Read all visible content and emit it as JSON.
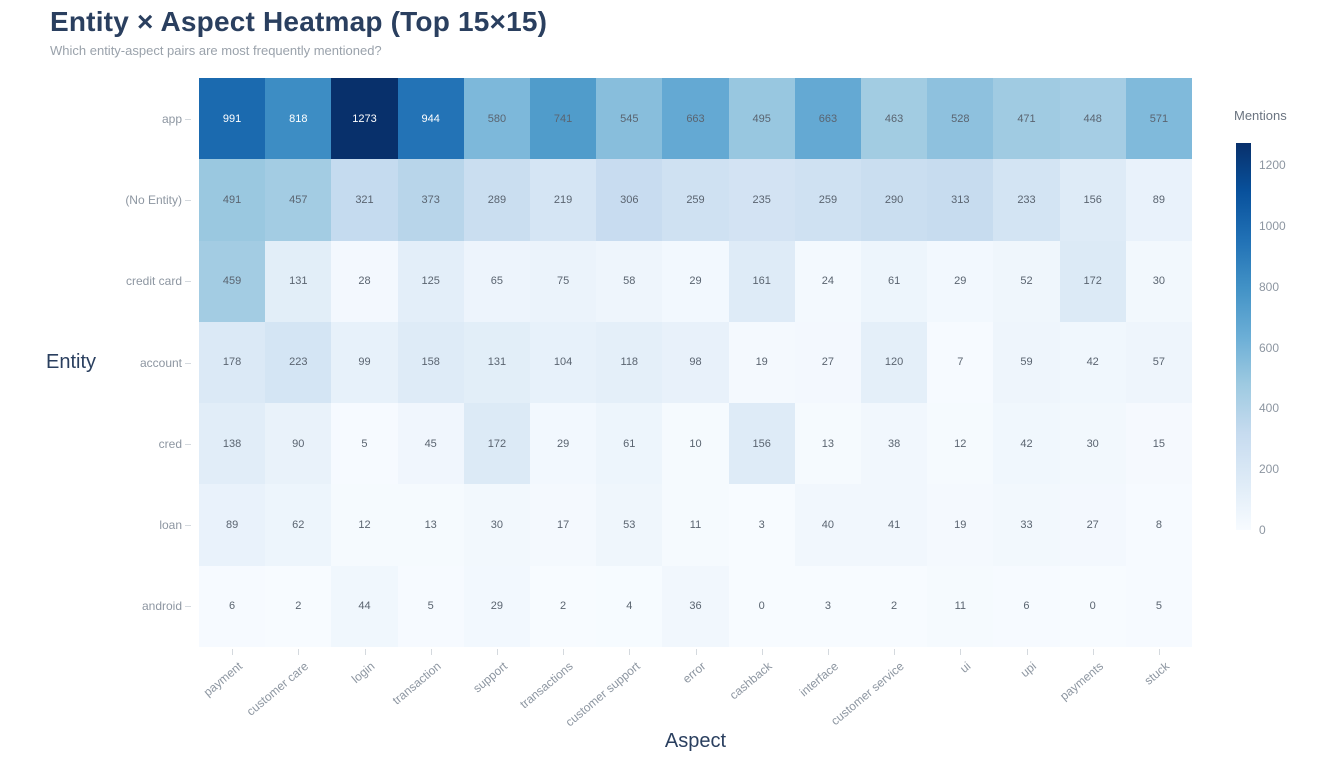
{
  "header": {
    "title": "Entity × Aspect Heatmap (Top 15×15)",
    "subtitle": "Which entity-aspect pairs are most frequently mentioned?"
  },
  "chart_data": {
    "type": "heatmap",
    "title": "Entity × Aspect Heatmap (Top 15×15)",
    "subtitle": "Which entity-aspect pairs are most frequently mentioned?",
    "xlabel": "Aspect",
    "ylabel": "Entity",
    "x_categories": [
      "payment",
      "customer care",
      "login",
      "transaction",
      "support",
      "transactions",
      "customer support",
      "error",
      "cashback",
      "interface",
      "customer service",
      "ui",
      "upi",
      "payments",
      "stuck"
    ],
    "y_categories": [
      "app",
      "(No Entity)",
      "credit card",
      "account",
      "cred",
      "loan",
      "android"
    ],
    "values": [
      [
        991,
        818,
        1273,
        944,
        580,
        741,
        545,
        663,
        495,
        663,
        463,
        528,
        471,
        448,
        571
      ],
      [
        491,
        457,
        321,
        373,
        289,
        219,
        306,
        259,
        235,
        259,
        290,
        313,
        233,
        156,
        89
      ],
      [
        459,
        131,
        28,
        125,
        65,
        75,
        58,
        29,
        161,
        24,
        61,
        29,
        52,
        172,
        30
      ],
      [
        178,
        223,
        99,
        158,
        131,
        104,
        118,
        98,
        19,
        27,
        120,
        7,
        59,
        42,
        57
      ],
      [
        138,
        90,
        5,
        45,
        172,
        29,
        61,
        10,
        156,
        13,
        38,
        12,
        42,
        30,
        15
      ],
      [
        89,
        62,
        12,
        13,
        30,
        17,
        53,
        11,
        3,
        40,
        41,
        19,
        33,
        27,
        8
      ],
      [
        6,
        2,
        44,
        5,
        29,
        2,
        4,
        36,
        0,
        3,
        2,
        11,
        6,
        0,
        5
      ]
    ],
    "colorbar": {
      "title": "Mentions",
      "ticks": [
        0,
        200,
        400,
        600,
        800,
        1000,
        1200
      ],
      "zmin": 0,
      "zmax": 1273
    },
    "colorscale": [
      [
        0.0,
        "#f7fbff"
      ],
      [
        0.125,
        "#deebf7"
      ],
      [
        0.25,
        "#c6dbef"
      ],
      [
        0.375,
        "#9ecae1"
      ],
      [
        0.5,
        "#6baed6"
      ],
      [
        0.625,
        "#4292c6"
      ],
      [
        0.75,
        "#2171b5"
      ],
      [
        0.875,
        "#08519c"
      ],
      [
        1.0,
        "#08306b"
      ]
    ],
    "grid": false,
    "legend_position": "right"
  },
  "colors": {
    "title_text": "#2a3f5f",
    "subtitle_text": "#9aa2ab",
    "axis_tick_text": "#8d96a1",
    "cell_text_light_bg": "#5a6470",
    "cell_text_dark_bg": "#ffffff",
    "background": "#ffffff"
  }
}
